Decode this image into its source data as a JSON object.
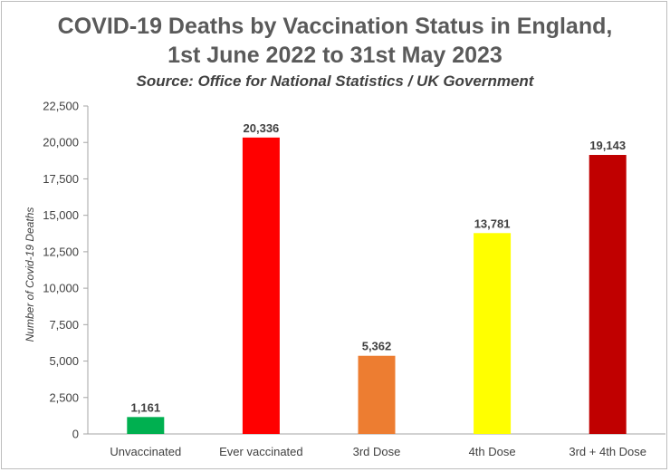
{
  "chart_data": {
    "type": "bar",
    "title_lines": [
      "COVID-19 Deaths by Vaccination Status in England,",
      "1st June 2022 to 31st May 2023"
    ],
    "subtitle": "Source: Office for National Statistics / UK Government",
    "xlabel": "",
    "ylabel": "Number of Covid-19 Deaths",
    "categories": [
      "Unvaccinated",
      "Ever vaccinated",
      "3rd Dose",
      "4th Dose",
      "3rd + 4th Dose"
    ],
    "values": [
      1161,
      20336,
      5362,
      13781,
      19143
    ],
    "value_labels": [
      "1,161",
      "20,336",
      "5,362",
      "13,781",
      "19,143"
    ],
    "bar_colors": [
      "#00b050",
      "#ff0000",
      "#ed7d31",
      "#ffff00",
      "#c00000"
    ],
    "ylim": [
      0,
      22500
    ],
    "yticks": [
      0,
      2500,
      5000,
      7500,
      10000,
      12500,
      15000,
      17500,
      20000,
      22500
    ],
    "ytick_labels": [
      "0",
      "2,500",
      "5,000",
      "7,500",
      "10,000",
      "12,500",
      "15,000",
      "17,500",
      "20,000",
      "22,500"
    ],
    "grid": false,
    "legend": "none"
  }
}
